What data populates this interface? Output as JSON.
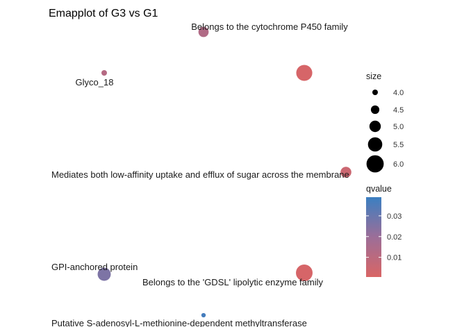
{
  "chart_data": {
    "type": "network",
    "title": "Emapplot of G3 vs G1",
    "nodes": [
      {
        "label": "Belongs to the cytochrome P450 family",
        "size": 4.8,
        "qvalue": 0.013
      },
      {
        "label": "",
        "size": 5.8,
        "qvalue": 0.0015
      },
      {
        "label": "Glyco_18",
        "size": 4.0,
        "qvalue": 0.012
      },
      {
        "label": "Mediates both low-affinity uptake and efflux of sugar across the membrane",
        "size": 4.9,
        "qvalue": 0.005
      },
      {
        "label": "GPI-anchored protein",
        "size": 5.3,
        "qvalue": 0.026
      },
      {
        "label": "Belongs to the 'GDSL' lipolytic enzyme family",
        "size": 5.9,
        "qvalue": 0.0015
      },
      {
        "label": "Putative S-adenosyl-L-methionine-dependent methyltransferase",
        "size": 3.8,
        "qvalue": 0.037
      }
    ],
    "legend": {
      "size": {
        "title": "size",
        "values": [
          4.0,
          4.5,
          5.0,
          5.5,
          6.0
        ],
        "labels": [
          "4.0",
          "4.5",
          "5.0",
          "5.5",
          "6.0"
        ]
      },
      "color": {
        "title": "qvalue",
        "range": [
          0.0005,
          0.039
        ],
        "ticks": [
          0.01,
          0.02,
          0.03
        ],
        "tick_labels": [
          "0.01",
          "0.02",
          "0.03"
        ],
        "low_color": "#d96565",
        "mid_color": "#9c6e98",
        "high_color": "#3b7fc1"
      }
    }
  }
}
